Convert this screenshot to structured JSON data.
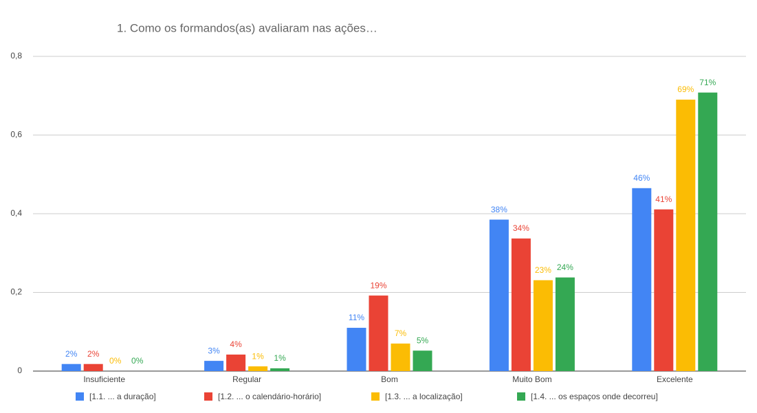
{
  "chart_data": {
    "type": "bar",
    "title": "1. Como os formandos(as) avaliaram nas ações…",
    "categories": [
      "Insuficiente",
      "Regular",
      "Bom",
      "Muito Bom",
      "Excelente"
    ],
    "series": [
      {
        "name": "[1.1. ... a duração]",
        "color": "#4285f4",
        "values": [
          0.018,
          0.026,
          0.11,
          0.385,
          0.465
        ],
        "value_labels": [
          "2%",
          "3%",
          "11%",
          "38%",
          "46%"
        ]
      },
      {
        "name": "[1.2. ... o calendário-horário]",
        "color": "#ea4335",
        "values": [
          0.018,
          0.042,
          0.192,
          0.337,
          0.411
        ],
        "value_labels": [
          "2%",
          "4%",
          "19%",
          "34%",
          "41%"
        ]
      },
      {
        "name": "[1.3. ... a localização]",
        "color": "#fbbc04",
        "values": [
          0,
          0.012,
          0.07,
          0.231,
          0.69
        ],
        "value_labels": [
          "0%",
          "1%",
          "7%",
          "23%",
          "69%"
        ]
      },
      {
        "name": "[1.4. ... os espaços onde decorreu]",
        "color": "#34a853",
        "values": [
          0,
          0.007,
          0.052,
          0.238,
          0.708
        ],
        "value_labels": [
          "0%",
          "1%",
          "5%",
          "24%",
          "71%"
        ]
      }
    ],
    "ylim": [
      0,
      0.8
    ],
    "yticks": [
      0,
      {
        "value": 0.2,
        "label": "0,2"
      },
      {
        "value": 0.4,
        "label": "0,4"
      },
      {
        "value": 0.6,
        "label": "0,6"
      },
      {
        "value": 0.8,
        "label": "0,8"
      }
    ],
    "grid": true
  }
}
